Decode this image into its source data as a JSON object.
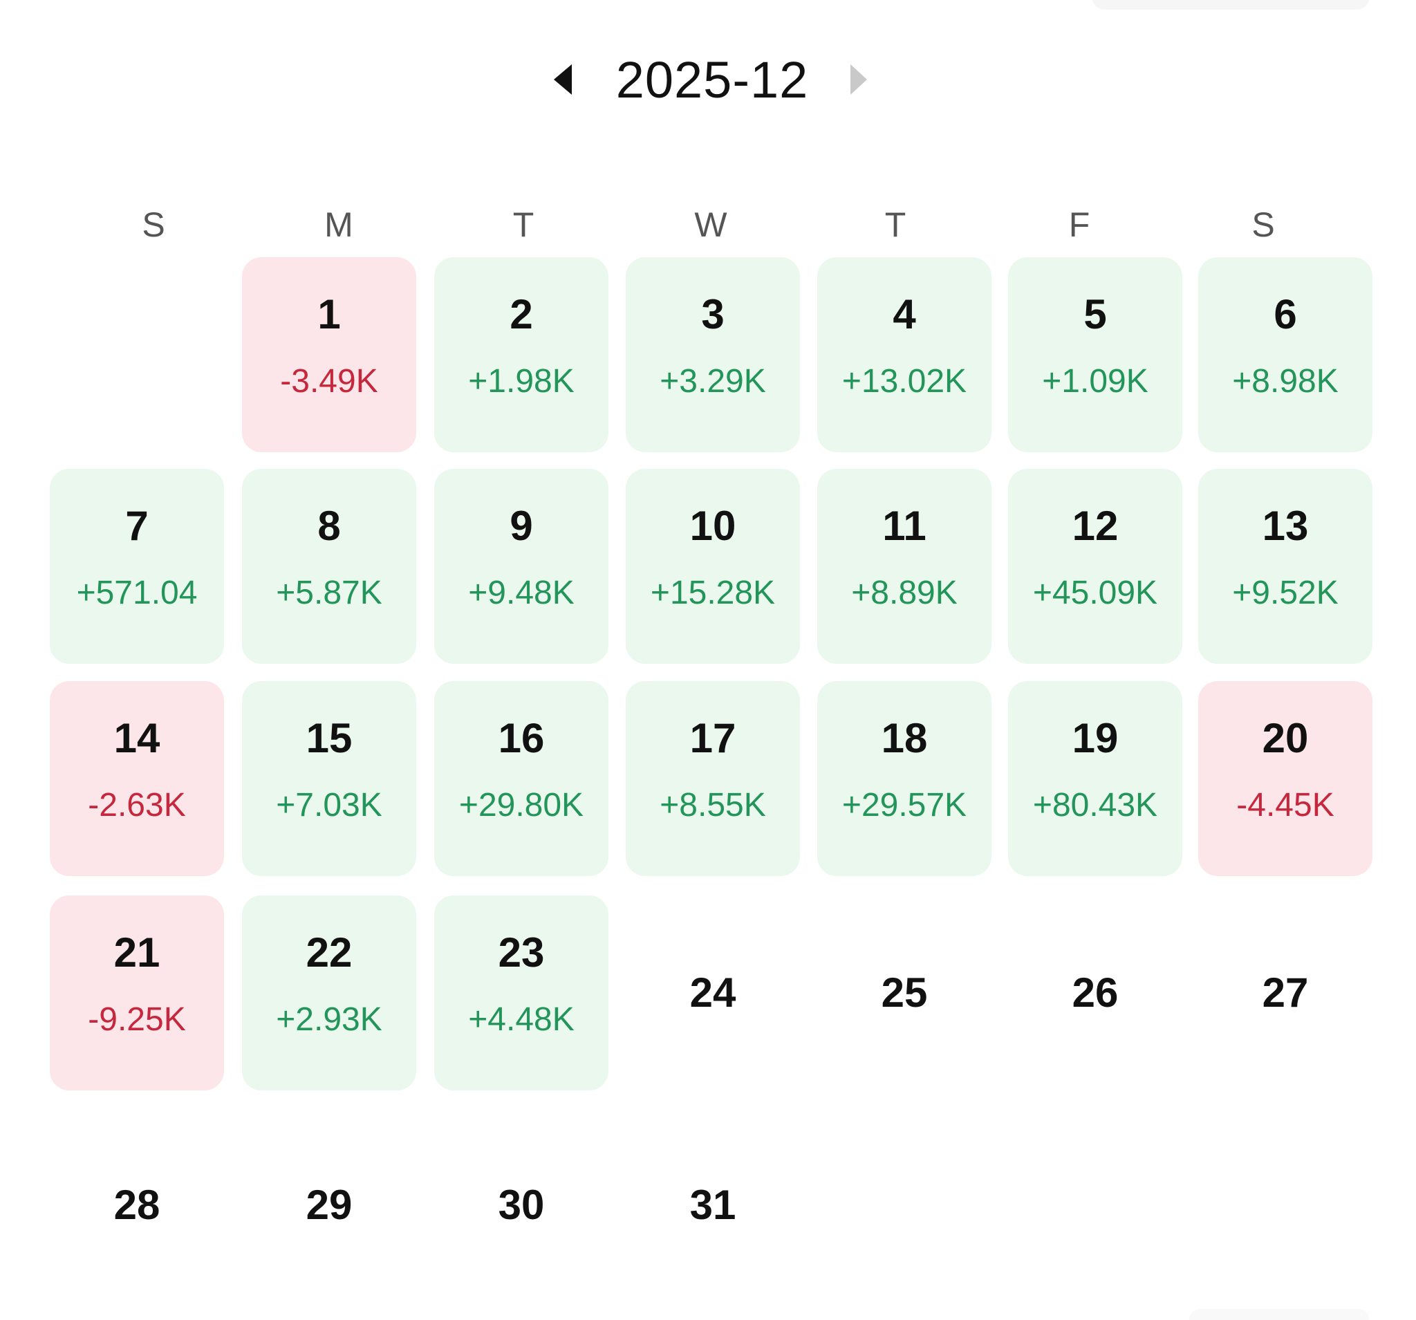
{
  "header": {
    "month_label": "2025-12",
    "prev_icon": "caret-left-icon",
    "next_icon": "caret-right-icon"
  },
  "weekdays": [
    "S",
    "M",
    "T",
    "W",
    "T",
    "F",
    "S"
  ],
  "colors": {
    "gain_bg": "#eaf8ee",
    "gain_text": "#23955a",
    "loss_bg": "#fde6ea",
    "loss_text": "#c5283d"
  },
  "days": [
    {
      "day": "1",
      "pnl": "-3.49K",
      "status": "loss"
    },
    {
      "day": "2",
      "pnl": "+1.98K",
      "status": "gain"
    },
    {
      "day": "3",
      "pnl": "+3.29K",
      "status": "gain"
    },
    {
      "day": "4",
      "pnl": "+13.02K",
      "status": "gain"
    },
    {
      "day": "5",
      "pnl": "+1.09K",
      "status": "gain"
    },
    {
      "day": "6",
      "pnl": "+8.98K",
      "status": "gain"
    },
    {
      "day": "7",
      "pnl": "+571.04",
      "status": "gain"
    },
    {
      "day": "8",
      "pnl": "+5.87K",
      "status": "gain"
    },
    {
      "day": "9",
      "pnl": "+9.48K",
      "status": "gain"
    },
    {
      "day": "10",
      "pnl": "+15.28K",
      "status": "gain"
    },
    {
      "day": "11",
      "pnl": "+8.89K",
      "status": "gain"
    },
    {
      "day": "12",
      "pnl": "+45.09K",
      "status": "gain"
    },
    {
      "day": "13",
      "pnl": "+9.52K",
      "status": "gain"
    },
    {
      "day": "14",
      "pnl": "-2.63K",
      "status": "loss"
    },
    {
      "day": "15",
      "pnl": "+7.03K",
      "status": "gain"
    },
    {
      "day": "16",
      "pnl": "+29.80K",
      "status": "gain"
    },
    {
      "day": "17",
      "pnl": "+8.55K",
      "status": "gain"
    },
    {
      "day": "18",
      "pnl": "+29.57K",
      "status": "gain"
    },
    {
      "day": "19",
      "pnl": "+80.43K",
      "status": "gain"
    },
    {
      "day": "20",
      "pnl": "-4.45K",
      "status": "loss"
    },
    {
      "day": "21",
      "pnl": "-9.25K",
      "status": "loss"
    },
    {
      "day": "22",
      "pnl": "+2.93K",
      "status": "gain"
    },
    {
      "day": "23",
      "pnl": "+4.48K",
      "status": "gain"
    },
    {
      "day": "24",
      "pnl": "",
      "status": "empty"
    },
    {
      "day": "25",
      "pnl": "",
      "status": "empty"
    },
    {
      "day": "26",
      "pnl": "",
      "status": "empty"
    },
    {
      "day": "27",
      "pnl": "",
      "status": "empty"
    },
    {
      "day": "28",
      "pnl": "",
      "status": "empty"
    },
    {
      "day": "29",
      "pnl": "",
      "status": "empty"
    },
    {
      "day": "30",
      "pnl": "",
      "status": "empty"
    },
    {
      "day": "31",
      "pnl": "",
      "status": "empty"
    }
  ]
}
